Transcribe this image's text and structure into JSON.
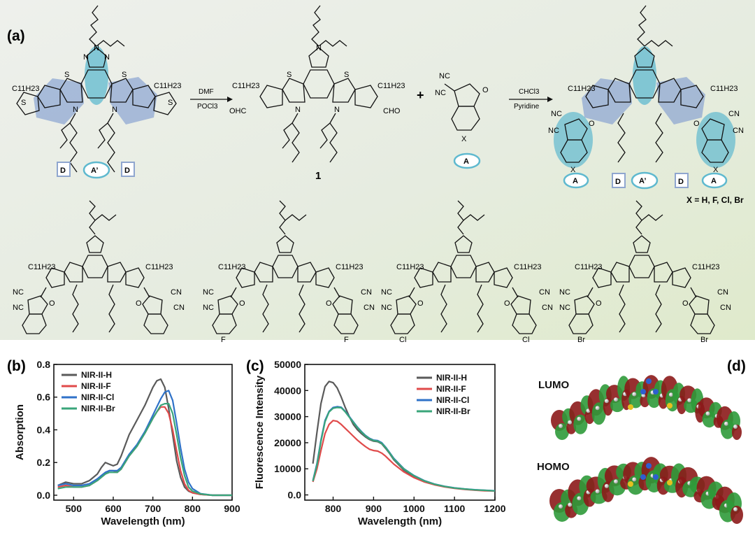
{
  "panels": {
    "a": "(a)",
    "b": "(b)",
    "c": "(c)",
    "d": "(d)"
  },
  "scheme": {
    "alkyl": "C11H23",
    "reagent1_top": "DMF",
    "reagent1_bottom": "POCl3",
    "reagent2_top": "CHCl3",
    "reagent2_bottom": "Pyridine",
    "compound_number": "1",
    "plus": "+",
    "x_definition": "X = H, F, Cl, Br",
    "cho_left": "OHC",
    "cho_right": "CHO",
    "cn": "NC",
    "cn2": "CN",
    "label_d": "D",
    "label_a_prime": "A’",
    "label_a": "A",
    "x_label": "X",
    "n_label": "N",
    "s_label": "S",
    "o_label": "O",
    "substituents": [
      "F",
      "Cl",
      "Br"
    ]
  },
  "orbitals": {
    "lumo": "LUMO",
    "homo": "HOMO"
  },
  "chart_data": [
    {
      "type": "line",
      "panel": "(b)",
      "xlabel": "Wavelength (nm)",
      "ylabel": "Absorption",
      "xlim": [
        450,
        900
      ],
      "ylim": [
        -0.03,
        0.8
      ],
      "xticks": [
        500,
        600,
        700,
        800,
        900
      ],
      "yticks": [
        0.0,
        0.2,
        0.4,
        0.6,
        0.8
      ],
      "legend": "top-left",
      "grid": false,
      "x": [
        460,
        480,
        500,
        520,
        540,
        560,
        570,
        580,
        590,
        600,
        610,
        620,
        640,
        660,
        680,
        700,
        710,
        720,
        730,
        740,
        750,
        760,
        770,
        780,
        790,
        800,
        820,
        850,
        900
      ],
      "series": [
        {
          "name": "NIR-II-H",
          "color": "#5a5a5a",
          "values": [
            0.06,
            0.08,
            0.07,
            0.07,
            0.09,
            0.13,
            0.17,
            0.2,
            0.19,
            0.18,
            0.19,
            0.24,
            0.37,
            0.46,
            0.55,
            0.66,
            0.7,
            0.71,
            0.66,
            0.53,
            0.37,
            0.21,
            0.11,
            0.05,
            0.025,
            0.015,
            0.005,
            0.0,
            0.0
          ]
        },
        {
          "name": "NIR-II-F",
          "color": "#e04a4a",
          "values": [
            0.05,
            0.06,
            0.05,
            0.05,
            0.06,
            0.09,
            0.11,
            0.13,
            0.15,
            0.15,
            0.14,
            0.16,
            0.24,
            0.3,
            0.38,
            0.47,
            0.51,
            0.54,
            0.54,
            0.5,
            0.4,
            0.27,
            0.15,
            0.07,
            0.03,
            0.015,
            0.005,
            0.0,
            0.0
          ]
        },
        {
          "name": "NIR-II-Cl",
          "color": "#2f72c8",
          "values": [
            0.06,
            0.07,
            0.06,
            0.06,
            0.07,
            0.1,
            0.12,
            0.14,
            0.15,
            0.15,
            0.15,
            0.17,
            0.25,
            0.31,
            0.39,
            0.49,
            0.54,
            0.59,
            0.63,
            0.64,
            0.58,
            0.44,
            0.29,
            0.16,
            0.08,
            0.04,
            0.01,
            0.0,
            0.0
          ]
        },
        {
          "name": "NIR-II-Br",
          "color": "#3aa57a",
          "values": [
            0.04,
            0.05,
            0.05,
            0.05,
            0.06,
            0.09,
            0.11,
            0.13,
            0.14,
            0.14,
            0.14,
            0.16,
            0.24,
            0.3,
            0.38,
            0.47,
            0.51,
            0.55,
            0.56,
            0.56,
            0.5,
            0.37,
            0.23,
            0.12,
            0.05,
            0.025,
            0.008,
            0.0,
            0.0
          ]
        }
      ]
    },
    {
      "type": "line",
      "panel": "(c)",
      "xlabel": "Wavelength (nm)",
      "ylabel": "Fluorescence Intensity",
      "xlim": [
        730,
        1200
      ],
      "ylim": [
        -2000,
        50000
      ],
      "xticks": [
        800,
        900,
        1000,
        1100,
        1200
      ],
      "yticks": [
        0,
        10000,
        20000,
        30000,
        40000,
        50000
      ],
      "legend": "top-right",
      "grid": false,
      "x": [
        750,
        760,
        770,
        780,
        790,
        800,
        810,
        820,
        830,
        840,
        850,
        860,
        870,
        880,
        890,
        900,
        910,
        920,
        930,
        940,
        950,
        975,
        1000,
        1025,
        1050,
        1075,
        1100,
        1125,
        1150,
        1175,
        1200
      ],
      "series": [
        {
          "name": "NIR-II-H",
          "color": "#5a5a5a",
          "values": [
            12000,
            24000,
            35000,
            41500,
            43500,
            43000,
            41000,
            37500,
            33500,
            30000,
            27000,
            25000,
            23500,
            22200,
            21200,
            20600,
            20400,
            19600,
            17800,
            15800,
            13500,
            9500,
            7000,
            5200,
            4000,
            3200,
            2600,
            2200,
            1900,
            1700,
            1500
          ]
        },
        {
          "name": "NIR-II-F",
          "color": "#e04a4a",
          "values": [
            5000,
            10000,
            17000,
            23500,
            27000,
            28500,
            28200,
            27000,
            25500,
            24000,
            22500,
            21000,
            19700,
            18500,
            17500,
            17000,
            16800,
            16000,
            14800,
            13300,
            11800,
            8800,
            6600,
            5000,
            3900,
            3100,
            2500,
            2100,
            1800,
            1600,
            1500
          ]
        },
        {
          "name": "NIR-II-Cl",
          "color": "#2f72c8",
          "values": [
            5500,
            12000,
            21000,
            28500,
            32000,
            33500,
            33800,
            33600,
            32000,
            30000,
            28000,
            26000,
            24300,
            22800,
            21700,
            21000,
            20800,
            20000,
            18300,
            16200,
            14000,
            10000,
            7400,
            5500,
            4200,
            3300,
            2700,
            2300,
            2000,
            1800,
            1600
          ]
        },
        {
          "name": "NIR-II-Br",
          "color": "#3aa57a",
          "values": [
            5300,
            11500,
            20500,
            28000,
            31800,
            33200,
            33500,
            33400,
            31800,
            29800,
            27800,
            25800,
            24100,
            22600,
            21500,
            20800,
            20600,
            19800,
            18100,
            16000,
            13800,
            9900,
            7300,
            5400,
            4100,
            3250,
            2650,
            2250,
            1950,
            1750,
            1550
          ]
        }
      ]
    }
  ]
}
